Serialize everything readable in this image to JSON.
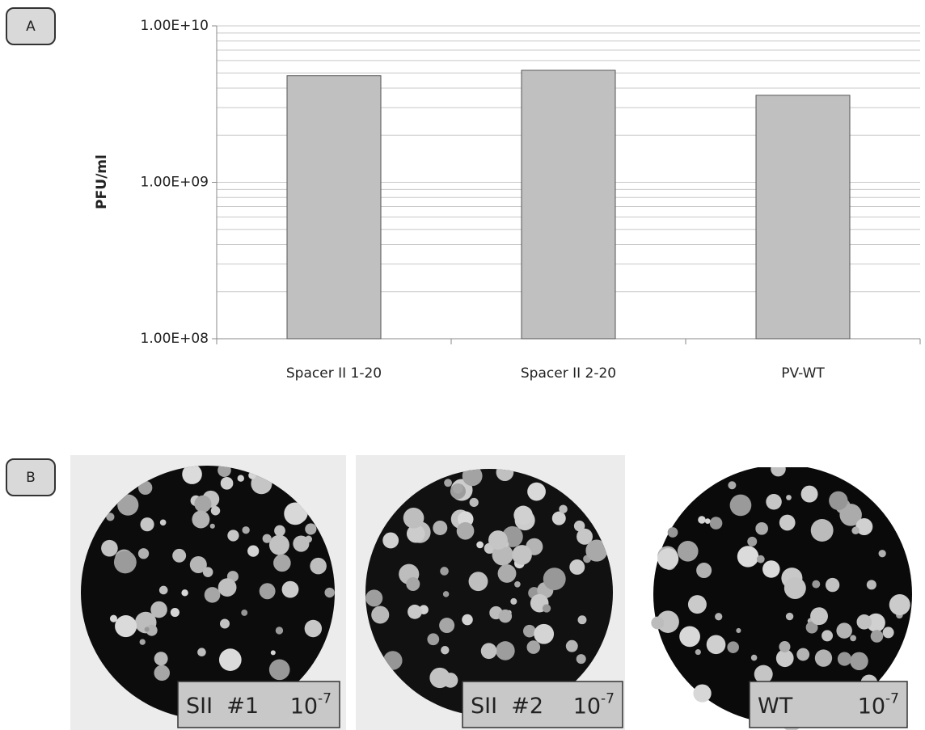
{
  "panels": [
    "A",
    "B"
  ],
  "chart_data": {
    "type": "bar",
    "y_label": "PFU/ml",
    "categories": [
      "Spacer II 1-20",
      "Spacer II 2-20",
      "PV-WT"
    ],
    "values": [
      4800000000,
      5200000000,
      3600000000
    ],
    "color": "#c0c0c0",
    "log_scale": true,
    "grid": true,
    "ylim": [
      100000000,
      10000000000
    ],
    "yticks": [
      {
        "value": 100000000,
        "label": "1.00E+08"
      },
      {
        "value": 1000000000,
        "label": "1.00E+09"
      },
      {
        "value": 10000000000,
        "label": "1.00E+10"
      }
    ],
    "minor_yticks": [
      200000000,
      300000000,
      400000000,
      500000000,
      600000000,
      700000000,
      800000000,
      900000000,
      2000000000,
      3000000000,
      4000000000,
      5000000000,
      6000000000,
      7000000000,
      8000000000,
      9000000000
    ]
  },
  "plates": [
    {
      "name": "SII  #1",
      "base": "10",
      "exponent": "-7"
    },
    {
      "name": "SII  #2",
      "base": "10",
      "exponent": "-7"
    },
    {
      "name": "WT",
      "base": "10",
      "exponent": "-7"
    }
  ]
}
